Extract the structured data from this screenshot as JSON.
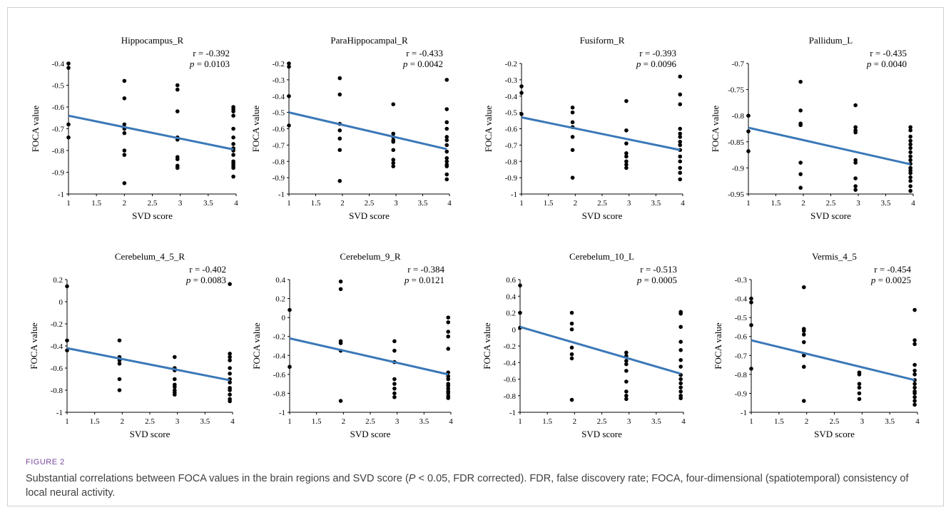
{
  "figure": {
    "label": "FIGURE 2",
    "caption_pre": "Substantial correlations between FOCA values in the brain regions and SVD score (",
    "caption_p": "P",
    "caption_post": " < 0.05, FDR corrected). FDR, false discovery rate; FOCA, four-dimensional (spatiotemporal) consistency of local neural activity."
  },
  "colors": {
    "trend": "#3a78b8",
    "point": "#000000",
    "axis": "#000000"
  },
  "chart_data": [
    {
      "type": "scatter",
      "title": "Hippocampus_R",
      "xlabel": "SVD score",
      "ylabel": "FOCA value",
      "r_label": "r = -0.392",
      "p_label": "p",
      "p_value": " = 0.0103",
      "xlim": [
        1,
        4
      ],
      "ylim": [
        -1,
        -0.4
      ],
      "xticks": [
        1,
        1.5,
        2,
        2.5,
        3,
        3.5,
        4
      ],
      "xtick_labels": [
        "1",
        "1.5",
        "2",
        "2.5",
        "3",
        "3.5",
        "4"
      ],
      "yticks": [
        -1,
        -0.9,
        -0.8,
        -0.7,
        -0.6,
        -0.5,
        -0.4
      ],
      "ytick_labels": [
        "-1",
        "-0.9",
        "-0.8",
        "-0.7",
        "-0.6",
        "-0.5",
        "-0.4"
      ],
      "x": [
        1,
        1,
        1,
        1,
        2,
        2,
        2,
        2,
        2,
        2,
        2,
        2,
        2.95,
        2.95,
        2.95,
        2.95,
        2.95,
        2.95,
        2.95,
        2.95,
        2.95,
        3.95,
        3.95,
        3.95,
        3.95,
        3.95,
        3.95,
        3.95,
        3.95,
        3.95,
        3.95,
        3.95,
        3.95,
        3.95,
        3.95,
        3.95
      ],
      "y": [
        -0.4,
        -0.42,
        -0.68,
        -0.74,
        -0.48,
        -0.56,
        -0.68,
        -0.7,
        -0.72,
        -0.8,
        -0.82,
        -0.95,
        -0.5,
        -0.52,
        -0.62,
        -0.74,
        -0.75,
        -0.83,
        -0.84,
        -0.87,
        -0.88,
        -0.6,
        -0.61,
        -0.62,
        -0.64,
        -0.7,
        -0.74,
        -0.77,
        -0.79,
        -0.8,
        -0.82,
        -0.85,
        -0.86,
        -0.87,
        -0.88,
        -0.92
      ],
      "trend": [
        [
          1,
          -0.64
        ],
        [
          3.95,
          -0.795
        ]
      ]
    },
    {
      "type": "scatter",
      "title": "ParaHippocampal_R",
      "xlabel": "SVD score",
      "ylabel": "FOCA value",
      "r_label": "r = -0.433",
      "p_label": "p",
      "p_value": " = 0.0042",
      "xlim": [
        1,
        4
      ],
      "ylim": [
        -1,
        -0.2
      ],
      "xticks": [
        1,
        1.5,
        2,
        2.5,
        3,
        3.5,
        4
      ],
      "xtick_labels": [
        "1",
        "1.5",
        "2",
        "2.5",
        "3",
        "3.5",
        "4"
      ],
      "yticks": [
        -1,
        -0.9,
        -0.8,
        -0.7,
        -0.6,
        -0.5,
        -0.4,
        -0.3,
        -0.2
      ],
      "ytick_labels": [
        "-1",
        "-0.9",
        "-0.8",
        "-0.7",
        "-0.6",
        "-0.5",
        "-0.4",
        "-0.3",
        "-0.2"
      ],
      "x": [
        1,
        1,
        1,
        1,
        1.95,
        1.95,
        1.95,
        1.95,
        1.95,
        1.95,
        1.95,
        2.95,
        2.95,
        2.95,
        2.95,
        2.95,
        2.95,
        2.95,
        2.95,
        2.95,
        3.95,
        3.95,
        3.95,
        3.95,
        3.95,
        3.95,
        3.95,
        3.95,
        3.95,
        3.95,
        3.95,
        3.95,
        3.95,
        3.95
      ],
      "y": [
        -0.2,
        -0.22,
        -0.4,
        -0.58,
        -0.29,
        -0.39,
        -0.57,
        -0.61,
        -0.66,
        -0.73,
        -0.92,
        -0.45,
        -0.63,
        -0.65,
        -0.67,
        -0.68,
        -0.73,
        -0.79,
        -0.81,
        -0.83,
        -0.3,
        -0.48,
        -0.56,
        -0.6,
        -0.65,
        -0.67,
        -0.7,
        -0.74,
        -0.78,
        -0.8,
        -0.82,
        -0.83,
        -0.88,
        -0.91
      ],
      "trend": [
        [
          1,
          -0.5
        ],
        [
          3.95,
          -0.725
        ]
      ]
    },
    {
      "type": "scatter",
      "title": "Fusiform_R",
      "xlabel": "SVD score",
      "ylabel": "FOCA value",
      "r_label": "r = -0.393",
      "p_label": "p",
      "p_value": " = 0.0096",
      "xlim": [
        1,
        4
      ],
      "ylim": [
        -1,
        -0.2
      ],
      "xticks": [
        1,
        1.5,
        2,
        2.5,
        3,
        3.5,
        4
      ],
      "xtick_labels": [
        "1",
        "1.5",
        "2",
        "2.5",
        "3",
        "3.5",
        "4"
      ],
      "yticks": [
        -1,
        -0.9,
        -0.8,
        -0.7,
        -0.6,
        -0.5,
        -0.4,
        -0.3,
        -0.2
      ],
      "ytick_labels": [
        "-1",
        "-0.9",
        "-0.8",
        "-0.7",
        "-0.6",
        "-0.5",
        "-0.4",
        "-0.3",
        "-0.2"
      ],
      "x": [
        1,
        1,
        1,
        1.95,
        1.95,
        1.95,
        1.95,
        1.95,
        1.95,
        1.95,
        2.95,
        2.95,
        2.95,
        2.95,
        2.95,
        2.95,
        2.95,
        2.95,
        3.95,
        3.95,
        3.95,
        3.95,
        3.95,
        3.95,
        3.95,
        3.95,
        3.95,
        3.95,
        3.95,
        3.95,
        3.95,
        3.95
      ],
      "y": [
        -0.34,
        -0.38,
        -0.51,
        -0.47,
        -0.5,
        -0.56,
        -0.59,
        -0.65,
        -0.73,
        -0.9,
        -0.43,
        -0.61,
        -0.69,
        -0.75,
        -0.77,
        -0.8,
        -0.82,
        -0.84,
        -0.28,
        -0.39,
        -0.45,
        -0.6,
        -0.63,
        -0.65,
        -0.68,
        -0.7,
        -0.73,
        -0.77,
        -0.8,
        -0.84,
        -0.87,
        -0.91
      ],
      "trend": [
        [
          1,
          -0.53
        ],
        [
          3.95,
          -0.73
        ]
      ]
    },
    {
      "type": "scatter",
      "title": "Pallidum_L",
      "xlabel": "SVD score",
      "ylabel": "FOCA value",
      "r_label": "r = -0.435",
      "p_label": "p",
      "p_value": " = 0.0040",
      "xlim": [
        1,
        4
      ],
      "ylim": [
        -0.95,
        -0.7
      ],
      "xticks": [
        1,
        1.5,
        2,
        2.5,
        3,
        3.5,
        4
      ],
      "xtick_labels": [
        "1",
        "1.5",
        "2",
        "2.5",
        "3",
        "3.5",
        "4"
      ],
      "yticks": [
        -0.95,
        -0.9,
        -0.85,
        -0.8,
        -0.75,
        -0.7
      ],
      "ytick_labels": [
        "-0.95",
        "-0.9",
        "-0.85",
        "-0.8",
        "-0.75",
        "-0.7"
      ],
      "x": [
        1,
        1,
        1,
        1.95,
        1.95,
        1.95,
        1.95,
        1.95,
        1.95,
        1.95,
        2.95,
        2.95,
        2.95,
        2.95,
        2.95,
        2.95,
        2.95,
        2.95,
        2.95,
        3.95,
        3.95,
        3.95,
        3.95,
        3.95,
        3.95,
        3.95,
        3.95,
        3.95,
        3.95,
        3.95,
        3.95,
        3.95,
        3.95,
        3.95,
        3.95,
        3.95
      ],
      "y": [
        -0.8,
        -0.83,
        -0.868,
        -0.735,
        -0.79,
        -0.815,
        -0.818,
        -0.89,
        -0.912,
        -0.938,
        -0.78,
        -0.822,
        -0.828,
        -0.832,
        -0.885,
        -0.89,
        -0.92,
        -0.935,
        -0.942,
        -0.822,
        -0.828,
        -0.84,
        -0.848,
        -0.855,
        -0.862,
        -0.87,
        -0.878,
        -0.885,
        -0.892,
        -0.9,
        -0.905,
        -0.91,
        -0.918,
        -0.925,
        -0.935,
        -0.944
      ],
      "trend": [
        [
          1,
          -0.823
        ],
        [
          3.95,
          -0.893
        ]
      ]
    },
    {
      "type": "scatter",
      "title": "Cerebelum_4_5_R",
      "xlabel": "SVD score",
      "ylabel": "FOCA value",
      "r_label": "r = -0.402",
      "p_label": "p",
      "p_value": " = 0.0083",
      "xlim": [
        1,
        4
      ],
      "ylim": [
        -1,
        0.2
      ],
      "xticks": [
        1,
        1.5,
        2,
        2.5,
        3,
        3.5,
        4
      ],
      "xtick_labels": [
        "1",
        "1.5",
        "2",
        "2.5",
        "3",
        "3.5",
        "4"
      ],
      "yticks": [
        -1,
        -0.8,
        -0.6,
        -0.4,
        -0.2,
        0,
        0.2
      ],
      "ytick_labels": [
        "-1",
        "-0.8",
        "-0.6",
        "-0.4",
        "-0.2",
        "0",
        "0.2"
      ],
      "x": [
        1,
        1,
        1,
        1.95,
        1.95,
        1.95,
        1.95,
        1.95,
        1.95,
        2.95,
        2.95,
        2.95,
        2.95,
        2.95,
        2.95,
        2.95,
        2.95,
        2.95,
        3.95,
        3.95,
        3.95,
        3.95,
        3.95,
        3.95,
        3.95,
        3.95,
        3.95,
        3.95,
        3.95,
        3.95,
        3.95
      ],
      "y": [
        0.14,
        -0.35,
        -0.44,
        -0.35,
        -0.5,
        -0.53,
        -0.56,
        -0.7,
        -0.8,
        -0.5,
        -0.6,
        -0.62,
        -0.7,
        -0.75,
        -0.77,
        -0.8,
        -0.82,
        -0.84,
        0.16,
        -0.47,
        -0.5,
        -0.53,
        -0.6,
        -0.65,
        -0.7,
        -0.73,
        -0.78,
        -0.8,
        -0.84,
        -0.88,
        -0.9
      ],
      "trend": [
        [
          1,
          -0.42
        ],
        [
          3.95,
          -0.71
        ]
      ]
    },
    {
      "type": "scatter",
      "title": "Cerebelum_9_R",
      "xlabel": "SVD score",
      "ylabel": "FOCA value",
      "r_label": "r = -0.384",
      "p_label": "p",
      "p_value": " = 0.0121",
      "xlim": [
        1,
        4
      ],
      "ylim": [
        -1,
        0.4
      ],
      "xticks": [
        1,
        1.5,
        2,
        2.5,
        3,
        3.5,
        4
      ],
      "xtick_labels": [
        "1",
        "1.5",
        "2",
        "2.5",
        "3",
        "3.5",
        "4"
      ],
      "yticks": [
        -1,
        -0.8,
        -0.6,
        -0.4,
        -0.2,
        0,
        0.2,
        0.4
      ],
      "ytick_labels": [
        "-1",
        "-0.8",
        "-0.6",
        "-0.4",
        "-0.2",
        "0",
        "0.2",
        "0.4"
      ],
      "x": [
        1,
        1,
        1.95,
        1.95,
        1.95,
        1.95,
        1.95,
        1.95,
        2.95,
        2.95,
        2.95,
        2.95,
        2.95,
        2.95,
        2.95,
        2.95,
        3.95,
        3.95,
        3.95,
        3.95,
        3.95,
        3.95,
        3.95,
        3.95,
        3.95,
        3.95,
        3.95,
        3.95,
        3.95,
        3.95,
        3.95
      ],
      "y": [
        0.08,
        -0.52,
        0.38,
        0.3,
        -0.25,
        -0.27,
        -0.35,
        -0.88,
        -0.25,
        -0.35,
        -0.47,
        -0.65,
        -0.7,
        -0.75,
        -0.8,
        -0.84,
        0,
        -0.05,
        -0.15,
        -0.2,
        -0.33,
        -0.58,
        -0.62,
        -0.65,
        -0.7,
        -0.72,
        -0.75,
        -0.78,
        -0.8,
        -0.83,
        -0.85
      ],
      "trend": [
        [
          1,
          -0.22
        ],
        [
          3.95,
          -0.6
        ]
      ]
    },
    {
      "type": "scatter",
      "title": "Cerebelum_10_L",
      "xlabel": "SVD score",
      "ylabel": "FOCA value",
      "r_label": "r = -0.513",
      "p_label": "p",
      "p_value": " = 0.0005",
      "xlim": [
        1,
        4
      ],
      "ylim": [
        -1,
        0.6
      ],
      "xticks": [
        1,
        1.5,
        2,
        2.5,
        3,
        3.5,
        4
      ],
      "xtick_labels": [
        "1",
        "1.5",
        "2",
        "2.5",
        "3",
        "3.5",
        "4"
      ],
      "yticks": [
        -1,
        -0.8,
        -0.6,
        -0.4,
        -0.2,
        0,
        0.2,
        0.4,
        0.6
      ],
      "ytick_labels": [
        "-1",
        "-0.8",
        "-0.6",
        "-0.4",
        "-0.2",
        "0",
        "0.2",
        "0.4",
        "0.6"
      ],
      "x": [
        1,
        1,
        1,
        1.95,
        1.95,
        1.95,
        1.95,
        1.95,
        1.95,
        1.95,
        2.95,
        2.95,
        2.95,
        2.95,
        2.95,
        2.95,
        2.95,
        2.95,
        2.95,
        3.95,
        3.95,
        3.95,
        3.95,
        3.95,
        3.95,
        3.95,
        3.95,
        3.95,
        3.95,
        3.95,
        3.95,
        3.95,
        3.95
      ],
      "y": [
        0.53,
        0.2,
        0.02,
        0.2,
        0.07,
        0,
        -0.22,
        -0.3,
        -0.35,
        -0.85,
        -0.28,
        -0.32,
        -0.38,
        -0.42,
        -0.5,
        -0.63,
        -0.75,
        -0.8,
        -0.84,
        0.21,
        0.19,
        0.03,
        -0.15,
        -0.25,
        -0.37,
        -0.45,
        -0.55,
        -0.6,
        -0.65,
        -0.7,
        -0.75,
        -0.8,
        -0.83
      ],
      "trend": [
        [
          1,
          0.03
        ],
        [
          3.95,
          -0.535
        ]
      ]
    },
    {
      "type": "scatter",
      "title": "Vermis_4_5",
      "xlabel": "SVD score",
      "ylabel": "FOCA value",
      "r_label": "r = -0.454",
      "p_label": "p",
      "p_value": " = 0.0025",
      "xlim": [
        1,
        4
      ],
      "ylim": [
        -1,
        -0.3
      ],
      "xticks": [
        1,
        1.5,
        2,
        2.5,
        3,
        3.5,
        4
      ],
      "xtick_labels": [
        "1",
        "1.5",
        "2",
        "2.5",
        "3",
        "3.5",
        "4"
      ],
      "yticks": [
        -1,
        -0.9,
        -0.8,
        -0.7,
        -0.6,
        -0.5,
        -0.4,
        -0.3
      ],
      "ytick_labels": [
        "-1",
        "-0.9",
        "-0.8",
        "-0.7",
        "-0.6",
        "-0.5",
        "-0.4",
        "-0.3"
      ],
      "x": [
        1,
        1,
        1,
        1,
        1.95,
        1.95,
        1.95,
        1.95,
        1.95,
        1.95,
        1.95,
        1.95,
        2.95,
        2.95,
        2.95,
        2.95,
        2.95,
        2.95,
        3.95,
        3.95,
        3.95,
        3.95,
        3.95,
        3.95,
        3.95,
        3.95,
        3.95,
        3.95,
        3.95,
        3.95,
        3.95,
        3.95
      ],
      "y": [
        -0.4,
        -0.42,
        -0.54,
        -0.77,
        -0.34,
        -0.56,
        -0.57,
        -0.59,
        -0.63,
        -0.7,
        -0.76,
        -0.94,
        -0.79,
        -0.8,
        -0.85,
        -0.87,
        -0.9,
        -0.93,
        -0.46,
        -0.62,
        -0.64,
        -0.75,
        -0.78,
        -0.8,
        -0.83,
        -0.85,
        -0.87,
        -0.89,
        -0.9,
        -0.92,
        -0.94,
        -0.96
      ],
      "trend": [
        [
          1,
          -0.62
        ],
        [
          3.95,
          -0.83
        ]
      ]
    }
  ]
}
